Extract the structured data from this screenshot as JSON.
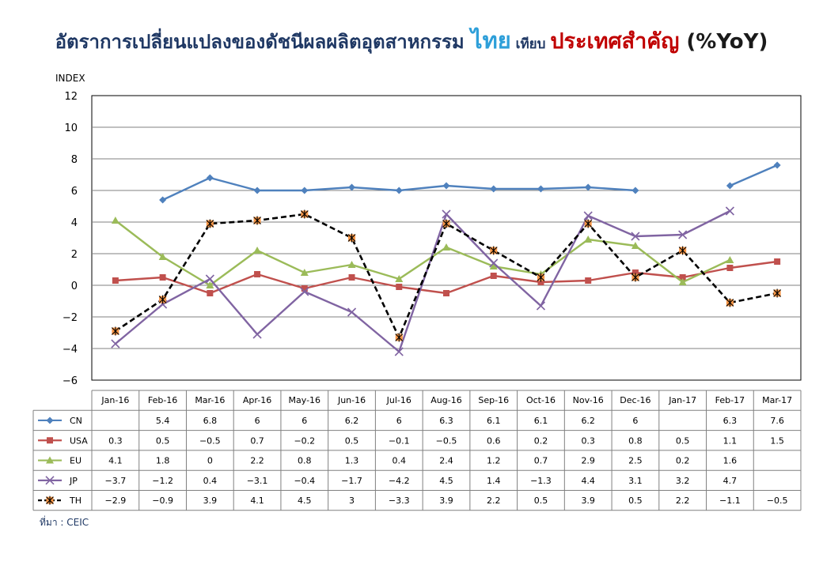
{
  "header": {
    "title_part1": "อัตราการเปลี่ยนแปลงของดัชนีผลผลิตอุตสาหกรรม ",
    "title_part2": "ไทย",
    "title_part3": " เทียบ ",
    "title_part4": "ประเทศสำคัญ",
    "title_part5": " (%YoY)"
  },
  "source": "ที่มา : CEIC",
  "chart_data": {
    "type": "line",
    "ylabel": "INDEX",
    "ylim": [
      -6,
      12
    ],
    "yticks": [
      -6,
      -4,
      -2,
      0,
      2,
      4,
      6,
      8,
      10,
      12
    ],
    "grid": true,
    "categories": [
      "Jan-16",
      "Feb-16",
      "Mar-16",
      "Apr-16",
      "May-16",
      "Jun-16",
      "Jul-16",
      "Aug-16",
      "Sep-16",
      "Oct-16",
      "Nov-16",
      "Dec-16",
      "Jan-17",
      "Feb-17",
      "Mar-17"
    ],
    "series": [
      {
        "name": "CN",
        "color": "#4f81bd",
        "marker": "diamond",
        "dash": false,
        "values": [
          null,
          5.4,
          6.8,
          6,
          6,
          6.2,
          6,
          6.3,
          6.1,
          6.1,
          6.2,
          6,
          null,
          6.3,
          7.6
        ]
      },
      {
        "name": "USA",
        "color": "#c0504d",
        "marker": "square",
        "dash": false,
        "values": [
          0.3,
          0.5,
          -0.5,
          0.7,
          -0.2,
          0.5,
          -0.1,
          -0.5,
          0.6,
          0.2,
          0.3,
          0.8,
          0.5,
          1.1,
          1.5
        ]
      },
      {
        "name": "EU",
        "color": "#9bbb59",
        "marker": "triangle",
        "dash": false,
        "values": [
          4.1,
          1.8,
          0,
          2.2,
          0.8,
          1.3,
          0.4,
          2.4,
          1.2,
          0.7,
          2.9,
          2.5,
          0.2,
          1.6,
          null
        ]
      },
      {
        "name": "JP",
        "color": "#8064a2",
        "marker": "x",
        "dash": false,
        "values": [
          -3.7,
          -1.2,
          0.4,
          -3.1,
          -0.4,
          -1.7,
          -4.2,
          4.5,
          1.4,
          -1.3,
          4.4,
          3.1,
          3.2,
          4.7,
          null
        ]
      },
      {
        "name": "TH",
        "color": "#000000",
        "marker": "star",
        "dash": true,
        "values": [
          -2.9,
          -0.9,
          3.9,
          4.1,
          4.5,
          3,
          -3.3,
          3.9,
          2.2,
          0.5,
          3.9,
          0.5,
          2.2,
          -1.1,
          -0.5
        ]
      }
    ]
  }
}
